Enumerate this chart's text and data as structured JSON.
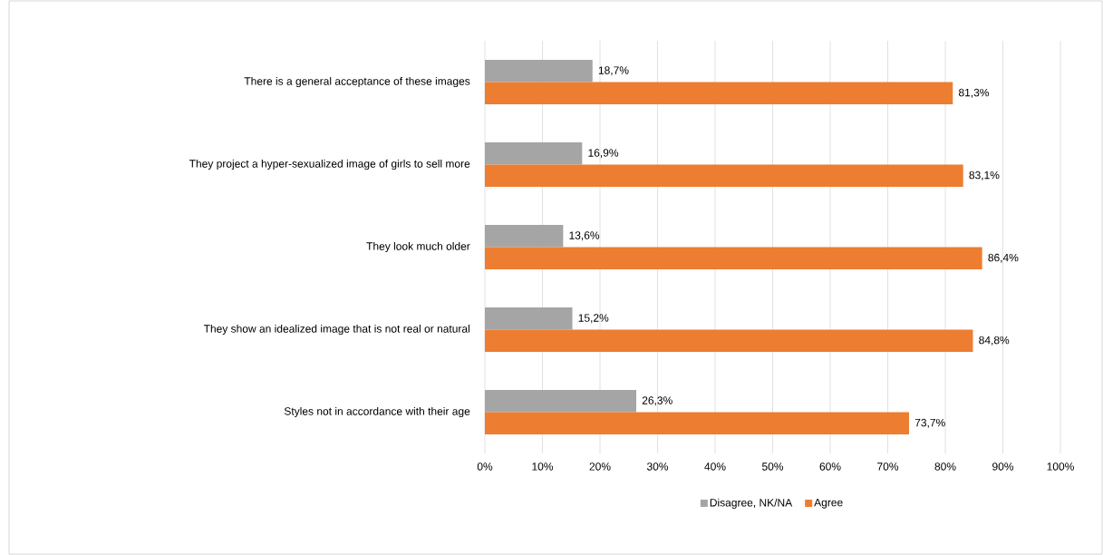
{
  "chart_data": {
    "type": "bar",
    "orientation": "horizontal",
    "categories": [
      "There is a general acceptance of these images",
      "They project a hyper-sexualized image of girls to sell more",
      "They look much older",
      "They show an idealized image that is not real or natural",
      "Styles not in accordance with their age"
    ],
    "series": [
      {
        "name": "Disagree, NK/NA",
        "color": "#a5a5a5",
        "values": [
          18.7,
          16.9,
          13.6,
          15.2,
          26.3
        ],
        "value_labels": [
          "18,7%",
          "16,9%",
          "13,6%",
          "15,2%",
          "26,3%"
        ]
      },
      {
        "name": "Agree",
        "color": "#ed7d31",
        "values": [
          81.3,
          83.1,
          86.4,
          84.8,
          73.7
        ],
        "value_labels": [
          "81,3%",
          "83,1%",
          "86,4%",
          "84,8%",
          "73,7%"
        ]
      }
    ],
    "xlim": [
      0,
      100
    ],
    "xticks": [
      {
        "value": 0,
        "label": "0%"
      },
      {
        "value": 10,
        "label": "10%"
      },
      {
        "value": 20,
        "label": "20%"
      },
      {
        "value": 30,
        "label": "30%"
      },
      {
        "value": 40,
        "label": "40%"
      },
      {
        "value": 50,
        "label": "50%"
      },
      {
        "value": 60,
        "label": "60%"
      },
      {
        "value": 70,
        "label": "70%"
      },
      {
        "value": 80,
        "label": "80%"
      },
      {
        "value": 90,
        "label": "90%"
      },
      {
        "value": 100,
        "label": "100%"
      }
    ],
    "grid": "x",
    "legend": "bottom"
  }
}
